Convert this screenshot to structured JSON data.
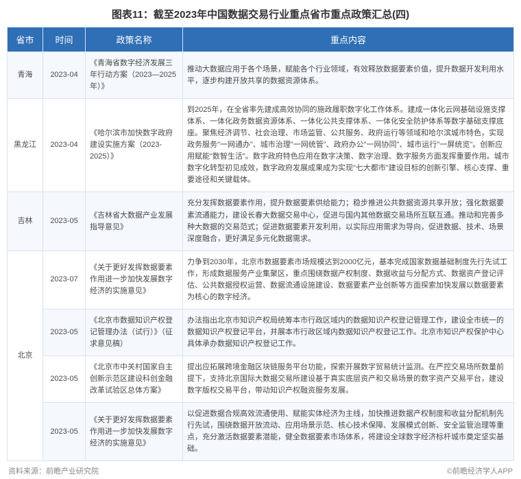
{
  "title": "图表11：截至2023年中国数据交易行业重点省市重点政策汇总(四)",
  "columns": {
    "province": "省市",
    "time": "时间",
    "policy_name": "政策名称",
    "key_content": "重点内容"
  },
  "rows": [
    {
      "province": "青海",
      "time": "2023-04",
      "policy_name": "《青海省数字经济发展三年行动方案（2023—2025年）》",
      "content": "推动大数据应用于各个场景，赋能各个行业领域，有效释放数据要素价值，提升数据开发利用水平，逐步构建开放共享的数据资源体系。"
    },
    {
      "province": "黑龙江",
      "time": "2023-04",
      "policy_name": "《哈尔滨市加快数字政府建设实施方案（2023-2025）》",
      "content": "到2025年，在全省率先建成高效协同的施政履职数字化工作体系。建成一体化云网基础设施支撑体系、一体化政务数据资源体系、一体化公共支撑体系、一体化安全防护体系等数字基础支撑底座。聚焦经济调节、社会治理、市场监管、公共服务、政府运行等领域和哈尔滨城市特色，实现政务服务\"一网通办\"、城市治理\"一网统管\"、政府办公\"一网协同\"、城市运行\"一屏统览\"。创新应用赋能\"数智生活\"。数字政府特色应用在数字决策、数字治理、数字服务方面发挥重要作用。城市数字化转型初见成效，数字政府发展成果成为实现\"七大都市\"建设目标的创新引擎、核心支撑、重要途径和关键载体。"
    },
    {
      "province": "吉林",
      "time": "2023-05",
      "policy_name": "《吉林省大数据产业发展指导意见》",
      "content": "充分发挥数据要素作用，提升数据要素供给能力；稳步推进公共数据资源共享开放；强化数据要素流通能力，建设长春大数据交易中心，促进与国内其他数据交易场所互联互通。推动和完善多种大数据的交易范式；促进数据要素开发利用，以实际应用需求为导向，促进数据、技术、场景深度融合，更好满足多元化数据需求。"
    },
    {
      "province": "北京",
      "rowspan": 4,
      "time": "2023-07",
      "policy_name": "《关于更好发挥数据要素作用进一步加快发展数字经济的实施意见》",
      "content": "力争到2030年，北京市数据要素市场规模达到2000亿元，基本完成国家数据基础制度先行先试工作，形成数据服务产业集聚区，重点围绕数据产权制度、数据收益与分配方式、数据资产登记评估、公共数据授权运营、数据流通设施建设、数据要素产业创新等方面探索加快发展以数据要素为核心的数字经济。"
    },
    {
      "time": "2023-05",
      "policy_name": "《北京市数据知识产权登记管理办法（试行）》（征求意见稿）",
      "content": "办法指出北京市知识产权局统筹本市行政区域内的数据知识产权登记管理工作，建设全市统一的数据知识产权登记平台，并展本市行政区域内数据知识产权登记工作。北京市知识产权保护中心具体承办数据知识产权登记工作。"
    },
    {
      "time": "2023-05",
      "policy_name": "《北京市中关村国家自主创新示范区建设科创金融改革试验区总体方案》",
      "content": "提出应拓展跨境金融区块链服务平台功能，探索开展数字贸易统计监测。在严控交易场所数量前提下，支持北京国际大数据交易所建设基于真实底层资产和交易场景的数字资产交易平台，建设数字版权交易平台，带动知识产权融资服务发展。"
    },
    {
      "time": "2023-05",
      "policy_name": "《关于更好发挥数据要素作用进一步加快发展数字经济的实施意见》",
      "content": "以促进数据合规高效流通使用、赋能实体经济为主线，加快推进数据产权制度和收益分配机制先行先试，围绕数据开放流动、应用场景示范、核心技术保障、发展模式创新、安全监管治理等重点，充分激活数据要素潜能，健全数据要素市场体系，将建设全球数字经济标杆城市奠定坚实基础。"
    }
  ],
  "footer": {
    "source": "资料来源：前瞻产业研究院",
    "copyright": "©前瞻经济学人APP"
  },
  "style": {
    "header_bg": "#2f6fb5",
    "header_fg": "#ffffff",
    "row_alt_bg": "#f5f8fc",
    "border_color": "#d9e3ef"
  }
}
